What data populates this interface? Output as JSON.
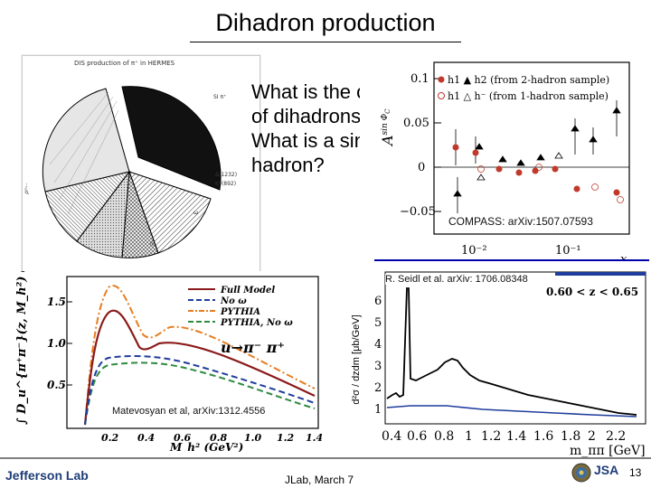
{
  "slide": {
    "title": "Dihadron production",
    "question": "What is the origin of dihadrons? What is a single hadron?",
    "footer_center": "JLab, March 7",
    "page_number": "13",
    "footer_logo": "Jefferson Lab",
    "footer_right_logo": "JSA"
  },
  "pie": {
    "caption": "DIS production of π⁺ in HERMES",
    "labels": {
      "si": "SI π⁺",
      "rho": "ρ⁰⁺⁻",
      "delta": "Δ(1232)",
      "kstar": "K*(892)",
      "omega": "ω",
      "eta": "η"
    }
  },
  "compass": {
    "reference": "COMPASS: arXiv:1507.07593",
    "ylabel": "A^{sin Φ_C}",
    "xlabel": "x",
    "legend": [
      "h1  ▲ h2 (from 2-hadron sample)",
      "h1  △ h⁻ (from 1-hadron sample)"
    ],
    "legend_markers": {
      "h1": "h",
      "h1_sub": "1",
      "h1b_sub": "+"
    },
    "y_ticks": [
      "0.1",
      "0.05",
      "0",
      "−0.05"
    ],
    "x_ticks": [
      "10⁻²",
      "10⁻¹"
    ],
    "colors": {
      "filled_circle": "#c0392b",
      "open_circle": "#c0392b",
      "triangle": "#000000"
    }
  },
  "fragmentation": {
    "reference": "Matevosyan et al, arXiv:1312.4556",
    "legend": [
      "Full Model",
      "No ω",
      "PYTHIA",
      "PYTHIA, No ω"
    ],
    "annotation": "u→π⁻ π⁺",
    "xlabel": "M_h² (GeV²)",
    "ylabel": "∫ D_u^{π⁺π⁻}(z, M_h²) dz",
    "y_ticks": [
      "1.5",
      "1.0",
      "0.5"
    ],
    "x_ticks": [
      "0.2",
      "0.4",
      "0.6",
      "0.8",
      "1.0",
      "1.2",
      "1.4"
    ],
    "colors": {
      "full": "#8b1a1a",
      "no_omega": "#1f3d9c",
      "pythia": "#e67e22",
      "pythia_no_omega": "#2e8b3e"
    }
  },
  "seidl": {
    "reference": "R. Seidl et al. arXiv: 1706.08348",
    "z_range": "0.60 < z < 0.65",
    "ylabel": "d²σ / dzdm [μb/GeV]",
    "xlabel": "m_ππ [GeV]",
    "y_ticks": [
      "6",
      "5",
      "4",
      "3",
      "2",
      "1"
    ],
    "x_ticks": [
      "0.4",
      "0.6",
      "0.8",
      "1",
      "1.2",
      "1.4",
      "1.6",
      "1.8",
      "2",
      "2.2"
    ]
  }
}
